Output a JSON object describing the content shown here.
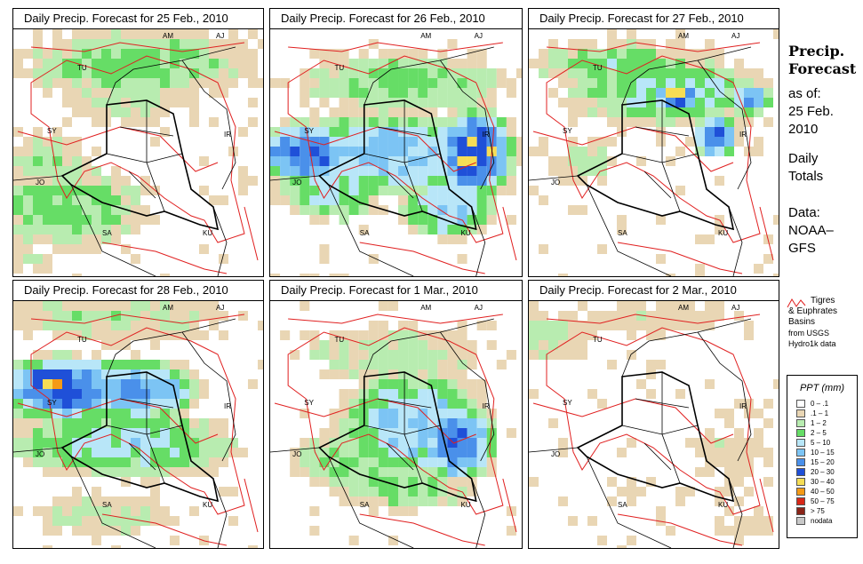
{
  "panels": [
    {
      "title": "Daily Precip. Forecast for  25 Feb., 2010"
    },
    {
      "title": "Daily Precip. Forecast for  26 Feb., 2010"
    },
    {
      "title": "Daily Precip. Forecast for  27 Feb., 2010"
    },
    {
      "title": "Daily Precip. Forecast for  28 Feb., 2010"
    },
    {
      "title": "Daily Precip. Forecast for  1 Mar., 2010"
    },
    {
      "title": "Daily Precip. Forecast for  2 Mar., 2010"
    }
  ],
  "country_labels": [
    "AM",
    "AJ",
    "TU",
    "SY",
    "IR",
    "JO",
    "SA",
    "KU"
  ],
  "sidebar": {
    "title_line1": "Precip.",
    "title_line2": "Forecast",
    "asof": "as of:",
    "date_line1": "25 Feb.",
    "date_line2": "2010",
    "totals_line1": "Daily",
    "totals_line2": "Totals",
    "data_line1": "Data:",
    "data_line2": "NOAA–",
    "data_line3": "GFS"
  },
  "basin_legend": {
    "line1": "Tigres",
    "line2": "& Euphrates",
    "line3": "Basins",
    "line4": "from USGS",
    "line5": "Hydro1k data",
    "color": "#e02020"
  },
  "ppt_legend": {
    "title": "PPT (mm)",
    "items": [
      {
        "label": "0 – .1",
        "color": "#ffffff"
      },
      {
        "label": ".1 – 1",
        "color": "#e9d6b4"
      },
      {
        "label": "1 – 2",
        "color": "#b8ecb0"
      },
      {
        "label": "2 – 5",
        "color": "#66dd66"
      },
      {
        "label": "5 – 10",
        "color": "#b8e6f8"
      },
      {
        "label": "10 – 15",
        "color": "#7cc4f4"
      },
      {
        "label": "15 – 20",
        "color": "#4a90ea"
      },
      {
        "label": "20 – 30",
        "color": "#1f50d8"
      },
      {
        "label": "30 – 40",
        "color": "#f6dd55"
      },
      {
        "label": "40 – 50",
        "color": "#f49a16"
      },
      {
        "label": "50 – 75",
        "color": "#d82818"
      },
      {
        "label": "> 75",
        "color": "#8a2418"
      },
      {
        "label": "nodata",
        "color": "#c8c8c8"
      }
    ]
  }
}
